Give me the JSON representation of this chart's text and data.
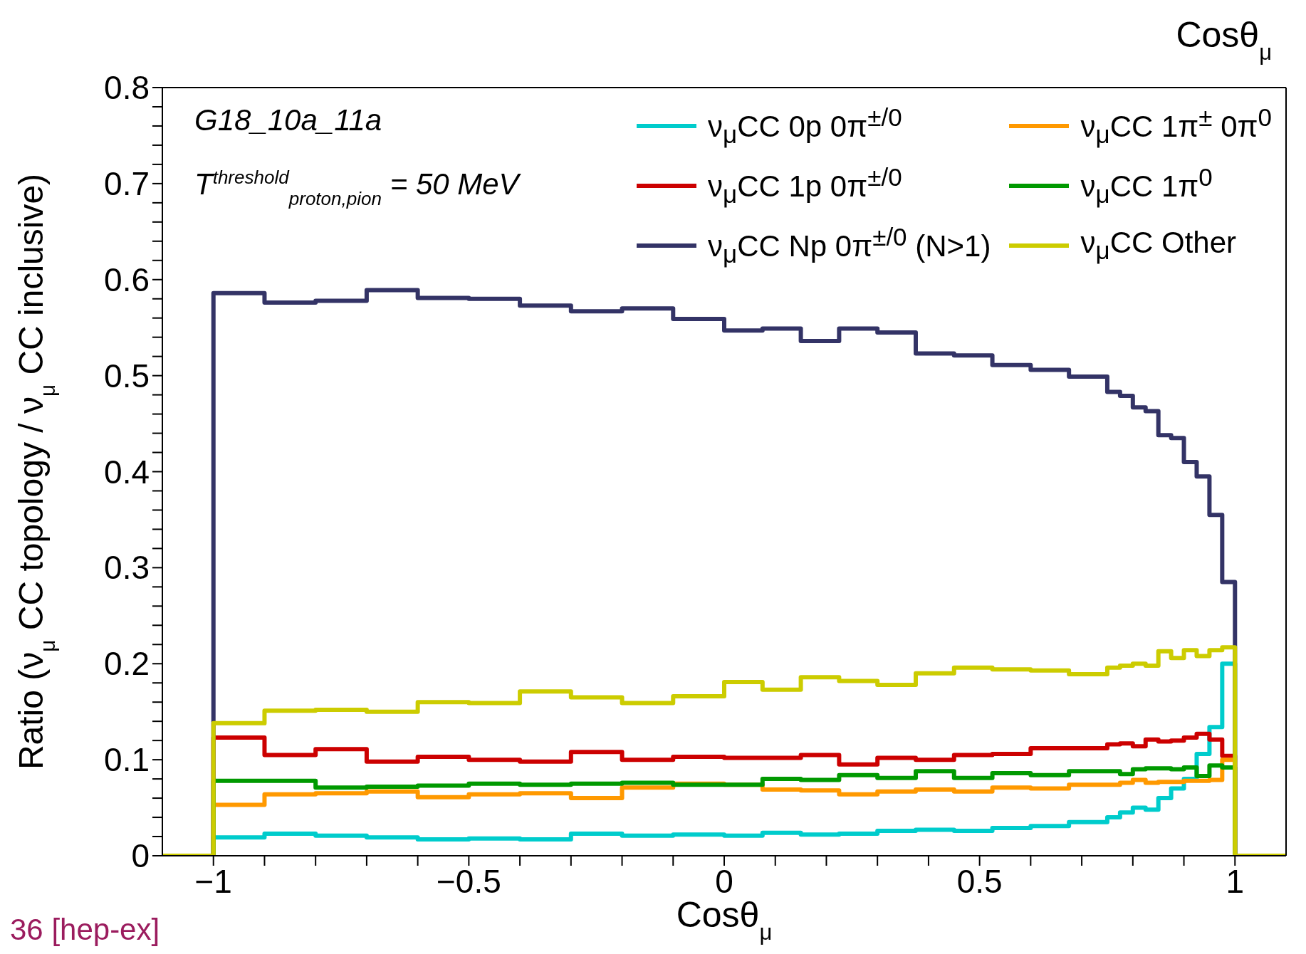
{
  "chart_data": {
    "type": "histogram",
    "title": "Cosθ$_{μ}$",
    "xlabel": "Cosθ$_{μ}$",
    "ylabel": "Ratio (ν$_{μ}$ CC topology / ν$_{μ}$ CC inclusive)",
    "annotations": [
      "G18_10a_11a",
      "T$^{threshold}$$_{proton,pion}$ = 50 MeV",
      "36 [hep-ex]"
    ],
    "bins": [
      -1.1,
      -1,
      -0.9,
      -0.8,
      -0.7,
      -0.6,
      -0.5,
      -0.4,
      -0.3,
      -0.2,
      -0.1,
      0,
      0.075,
      0.15,
      0.225,
      0.3,
      0.375,
      0.45,
      0.525,
      0.6,
      0.675,
      0.75,
      0.775,
      0.8,
      0.825,
      0.85,
      0.875,
      0.9,
      0.925,
      0.95,
      0.975,
      1,
      1.1
    ],
    "series": [
      {
        "name": "ν$_{μ}$CC 0p 0π$^{±/0}$",
        "color": "#00cccc",
        "values": [
          0,
          0.019,
          0.023,
          0.021,
          0.019,
          0.017,
          0.018,
          0.017,
          0.023,
          0.021,
          0.022,
          0.021,
          0.024,
          0.022,
          0.023,
          0.026,
          0.027,
          0.026,
          0.029,
          0.031,
          0.035,
          0.04,
          0.045,
          0.05,
          0.048,
          0.06,
          0.07,
          0.08,
          0.106,
          0.134,
          0.2,
          0
        ]
      },
      {
        "name": "ν$_{μ}$CC 1p 0π$^{±/0}$",
        "color": "#cc0000",
        "values": [
          0,
          0.123,
          0.105,
          0.111,
          0.098,
          0.103,
          0.1,
          0.098,
          0.108,
          0.1,
          0.103,
          0.102,
          0.102,
          0.105,
          0.095,
          0.102,
          0.1,
          0.105,
          0.106,
          0.112,
          0.112,
          0.116,
          0.117,
          0.114,
          0.121,
          0.119,
          0.12,
          0.123,
          0.127,
          0.121,
          0.104,
          0
        ]
      },
      {
        "name": "ν$_{μ}$CC Np 0π$^{±/0}$ (N>1)",
        "color": "#333366",
        "values": [
          0,
          0.586,
          0.576,
          0.578,
          0.589,
          0.581,
          0.58,
          0.573,
          0.567,
          0.57,
          0.559,
          0.547,
          0.549,
          0.536,
          0.549,
          0.545,
          0.523,
          0.521,
          0.511,
          0.506,
          0.499,
          0.483,
          0.479,
          0.467,
          0.463,
          0.438,
          0.435,
          0.41,
          0.395,
          0.355,
          0.285,
          0
        ]
      },
      {
        "name": "ν$_{μ}$CC 1π$^{±}$ 0π$^{0}$",
        "color": "#ff9900",
        "values": [
          0,
          0.053,
          0.064,
          0.065,
          0.067,
          0.061,
          0.064,
          0.065,
          0.06,
          0.071,
          0.075,
          0.074,
          0.069,
          0.068,
          0.064,
          0.067,
          0.069,
          0.067,
          0.071,
          0.07,
          0.074,
          0.074,
          0.076,
          0.079,
          0.076,
          0.077,
          0.077,
          0.078,
          0.078,
          0.079,
          0.1,
          0
        ]
      },
      {
        "name": "ν$_{μ}$CC 1π$^{0}$",
        "color": "#009900",
        "values": [
          0,
          0.078,
          0.078,
          0.071,
          0.072,
          0.073,
          0.075,
          0.074,
          0.075,
          0.076,
          0.074,
          0.074,
          0.08,
          0.079,
          0.084,
          0.081,
          0.088,
          0.081,
          0.086,
          0.084,
          0.088,
          0.088,
          0.085,
          0.09,
          0.091,
          0.091,
          0.09,
          0.092,
          0.083,
          0.094,
          0.092,
          0
        ]
      },
      {
        "name": "ν$_{μ}$CC Other",
        "color": "#cccc00",
        "values": [
          0,
          0.138,
          0.151,
          0.152,
          0.15,
          0.16,
          0.159,
          0.171,
          0.165,
          0.159,
          0.166,
          0.181,
          0.173,
          0.186,
          0.182,
          0.178,
          0.19,
          0.196,
          0.194,
          0.193,
          0.189,
          0.196,
          0.198,
          0.2,
          0.198,
          0.213,
          0.206,
          0.214,
          0.208,
          0.214,
          0.217,
          0
        ]
      }
    ],
    "xlim": [
      -1.1,
      1.1
    ],
    "xticks": [
      {
        "value": -1,
        "label": "−1"
      },
      {
        "value": -0.9,
        "label": null
      },
      {
        "value": -0.8,
        "label": null
      },
      {
        "value": -0.7,
        "label": null
      },
      {
        "value": -0.6,
        "label": null
      },
      {
        "value": -0.5,
        "label": "−0.5"
      },
      {
        "value": -0.4,
        "label": null
      },
      {
        "value": -0.3,
        "label": null
      },
      {
        "value": -0.2,
        "label": null
      },
      {
        "value": -0.1,
        "label": null
      },
      0,
      {
        "value": 0.1,
        "label": null
      },
      {
        "value": 0.2,
        "label": null
      },
      {
        "value": 0.3,
        "label": null
      },
      {
        "value": 0.4,
        "label": null
      },
      0.5,
      {
        "value": 0.6,
        "label": null
      },
      {
        "value": 0.7,
        "label": null
      },
      {
        "value": 0.8,
        "label": null
      },
      {
        "value": 0.9,
        "label": null
      },
      1
    ],
    "ylim": [
      0,
      0.8
    ],
    "yticks": [
      0,
      {
        "value": 0.02,
        "label": null
      },
      {
        "value": 0.04,
        "label": null
      },
      {
        "value": 0.06,
        "label": null
      },
      {
        "value": 0.08,
        "label": null
      },
      0.1,
      {
        "value": 0.12,
        "label": null
      },
      {
        "value": 0.14,
        "label": null
      },
      {
        "value": 0.16,
        "label": null
      },
      {
        "value": 0.18,
        "label": null
      },
      0.2,
      {
        "value": 0.22,
        "label": null
      },
      {
        "value": 0.24,
        "label": null
      },
      {
        "value": 0.26,
        "label": null
      },
      {
        "value": 0.28,
        "label": null
      },
      0.3,
      {
        "value": 0.32,
        "label": null
      },
      {
        "value": 0.34,
        "label": null
      },
      {
        "value": 0.36,
        "label": null
      },
      {
        "value": 0.38,
        "label": null
      },
      0.4,
      {
        "value": 0.42,
        "label": null
      },
      {
        "value": 0.44,
        "label": null
      },
      {
        "value": 0.46,
        "label": null
      },
      {
        "value": 0.48,
        "label": null
      },
      0.5,
      {
        "value": 0.52,
        "label": null
      },
      {
        "value": 0.54,
        "label": null
      },
      {
        "value": 0.56,
        "label": null
      },
      {
        "value": 0.58,
        "label": null
      },
      0.6,
      {
        "value": 0.62,
        "label": null
      },
      {
        "value": 0.64,
        "label": null
      },
      {
        "value": 0.66,
        "label": null
      },
      {
        "value": 0.68,
        "label": null
      },
      0.7,
      {
        "value": 0.72,
        "label": null
      },
      {
        "value": 0.74,
        "label": null
      },
      {
        "value": 0.76,
        "label": null
      },
      {
        "value": 0.78,
        "label": null
      },
      0.8
    ],
    "grid": false,
    "legend": "top right",
    "marker": "none",
    "line_style": "solid"
  }
}
